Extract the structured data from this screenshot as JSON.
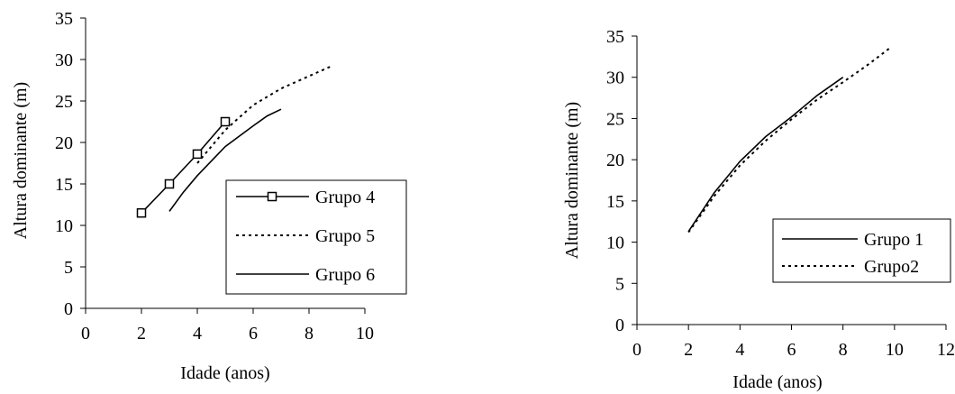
{
  "chart_data": [
    {
      "type": "line",
      "xlabel": "Idade (anos)",
      "ylabel": "Altura dominante (m)",
      "xlim": [
        0,
        10
      ],
      "ylim": [
        0,
        35
      ],
      "xticks": [
        "0",
        "2",
        "4",
        "6",
        "8",
        "10"
      ],
      "yticks": [
        "0",
        "5",
        "10",
        "15",
        "20",
        "25",
        "30",
        "35"
      ],
      "grid": false,
      "legend_position": "bottom-right",
      "series": [
        {
          "name": "Grupo 4",
          "style": "solid-square-markers",
          "color": "#000000",
          "x": [
            2,
            3,
            4,
            5
          ],
          "y": [
            11.5,
            15.0,
            18.6,
            22.5
          ]
        },
        {
          "name": "Grupo 5",
          "style": "dotted",
          "color": "#000000",
          "x": [
            4,
            5,
            6,
            7,
            8,
            8.8
          ],
          "y": [
            17.5,
            21.5,
            24.5,
            26.5,
            28.0,
            29.2
          ]
        },
        {
          "name": "Grupo 6",
          "style": "solid",
          "color": "#000000",
          "x": [
            3,
            3.5,
            4,
            5,
            6,
            6.5,
            7
          ],
          "y": [
            11.7,
            14.0,
            16.0,
            19.5,
            22.0,
            23.2,
            24.0
          ]
        }
      ]
    },
    {
      "type": "line",
      "xlabel": "Idade (anos)",
      "ylabel": "Altura dominante (m)",
      "xlim": [
        0,
        12
      ],
      "ylim": [
        0,
        35
      ],
      "xticks": [
        "0",
        "2",
        "4",
        "6",
        "8",
        "10",
        "12"
      ],
      "yticks": [
        "0",
        "5",
        "10",
        "15",
        "20",
        "25",
        "30",
        "35"
      ],
      "grid": false,
      "legend_position": "bottom-right",
      "series": [
        {
          "name": "Grupo 1",
          "style": "solid",
          "color": "#000000",
          "x": [
            2,
            3,
            4,
            5,
            5.5,
            6,
            7,
            8
          ],
          "y": [
            11.3,
            16.0,
            19.8,
            22.8,
            24.0,
            25.2,
            27.8,
            30.0
          ]
        },
        {
          "name": "Grupo2",
          "style": "dotted",
          "color": "#000000",
          "x": [
            2,
            3,
            4,
            5,
            6,
            7,
            8,
            9,
            9.8
          ],
          "y": [
            11.2,
            15.6,
            19.3,
            22.3,
            24.9,
            27.3,
            29.4,
            31.6,
            33.5
          ]
        }
      ]
    }
  ]
}
